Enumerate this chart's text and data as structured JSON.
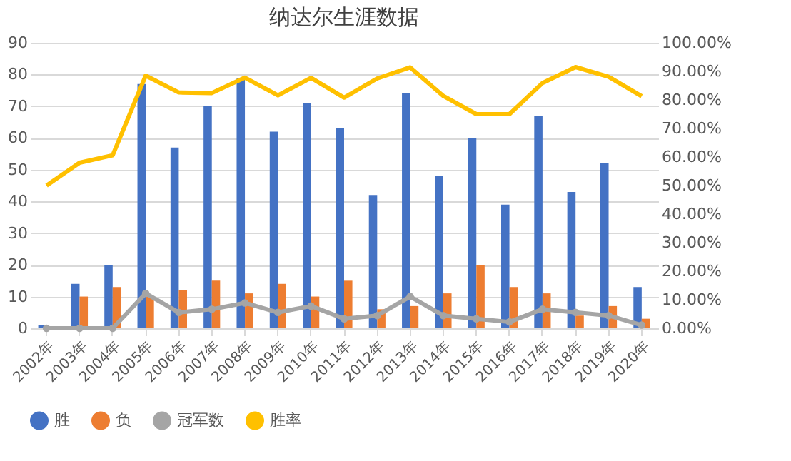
{
  "chart_data": {
    "type": "bar",
    "title": "纳达尔生涯数据",
    "categories": [
      "2002年",
      "2003年",
      "2004年",
      "2005年",
      "2006年",
      "2007年",
      "2008年",
      "2009年",
      "2010年",
      "2011年",
      "2012年",
      "2013年",
      "2014年",
      "2015年",
      "2016年",
      "2017年",
      "2018年",
      "2019年",
      "2020年"
    ],
    "series": [
      {
        "name": "胜",
        "color": "#4472c4",
        "values": [
          1,
          14,
          20,
          77,
          57,
          70,
          79,
          62,
          71,
          63,
          42,
          74,
          48,
          60,
          39,
          67,
          43,
          52,
          13
        ]
      },
      {
        "name": "负",
        "color": "#ed7d31",
        "values": [
          null,
          10,
          13,
          10,
          12,
          15,
          11,
          14,
          10,
          15,
          6,
          7,
          11,
          20,
          13,
          11,
          4,
          7,
          3
        ]
      },
      {
        "name": "冠军数",
        "type": "line",
        "marker": "circle",
        "color": "#a5a5a5",
        "values": [
          0,
          0,
          0,
          11,
          5,
          6,
          8,
          5,
          7,
          3,
          4,
          10,
          4,
          3,
          2,
          6,
          5,
          4,
          1
        ]
      },
      {
        "name": "胜率",
        "type": "line",
        "axis": "y2",
        "color": "#ffc000",
        "values": [
          50,
          58,
          60.6,
          88.5,
          82.6,
          82.4,
          87.8,
          81.6,
          87.7,
          80.8,
          87.5,
          91.4,
          81.4,
          75,
          75,
          85.9,
          91.5,
          88.1,
          81.3
        ]
      }
    ],
    "ylim": [
      0,
      90
    ],
    "yticks": [
      0,
      10,
      20,
      30,
      40,
      50,
      60,
      70,
      80,
      90
    ],
    "y2lim": [
      0,
      100
    ],
    "y2ticks": [
      {
        "value": 0,
        "label": "0.00%"
      },
      {
        "value": 10,
        "label": "10.00%"
      },
      {
        "value": 20,
        "label": "20.00%"
      },
      {
        "value": 30,
        "label": "30.00%"
      },
      {
        "value": 40,
        "label": "40.00%"
      },
      {
        "value": 50,
        "label": "50.00%"
      },
      {
        "value": 60,
        "label": "60.00%"
      },
      {
        "value": 70,
        "label": "70.00%"
      },
      {
        "value": 80,
        "label": "80.00%"
      },
      {
        "value": 90,
        "label": "90.00%"
      },
      {
        "value": 100,
        "label": "100.00%"
      }
    ],
    "grid": "y",
    "legend": "bottom"
  }
}
